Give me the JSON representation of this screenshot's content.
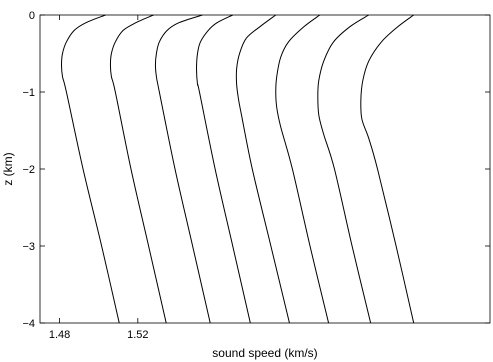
{
  "chart_data": {
    "type": "line",
    "title": "",
    "xlabel": "sound speed (km/s)",
    "ylabel": "z (km)",
    "xlim": [
      1.47,
      1.7
    ],
    "ylim": [
      -4,
      0
    ],
    "x_ticks": [
      1.48,
      1.52
    ],
    "x_tick_labels": [
      "1.48",
      "1.52"
    ],
    "y_ticks": [
      0,
      -1,
      -2,
      -3,
      -4
    ],
    "y_tick_labels": [
      "0",
      "−1",
      "−2",
      "−3",
      "−4"
    ],
    "grid": false,
    "legend": "none",
    "line_color": "#000000",
    "series": [
      {
        "z": [
          0,
          -0.1,
          -0.2,
          -0.35,
          -0.5,
          -0.65,
          -0.8,
          -1,
          -2,
          -3,
          -4
        ],
        "c": [
          1.5035,
          1.4935,
          1.4875,
          1.4835,
          1.4815,
          1.481,
          1.4815,
          1.4835,
          1.492,
          1.5015,
          1.5105
        ]
      },
      {
        "z": [
          0,
          -0.1,
          -0.2,
          -0.35,
          -0.5,
          -0.65,
          -0.8,
          -1,
          -2,
          -3,
          -4
        ],
        "c": [
          1.528,
          1.519,
          1.5125,
          1.5085,
          1.5065,
          1.506,
          1.5065,
          1.5085,
          1.5165,
          1.5255,
          1.5345
        ]
      },
      {
        "z": [
          0,
          -0.1,
          -0.2,
          -0.35,
          -0.5,
          -0.65,
          -0.8,
          -1,
          -2,
          -3,
          -4
        ],
        "c": [
          1.553,
          1.541,
          1.535,
          1.531,
          1.5295,
          1.529,
          1.5295,
          1.531,
          1.539,
          1.548,
          1.557
        ]
      },
      {
        "z": [
          0,
          -0.1,
          -0.2,
          -0.35,
          -0.5,
          -0.7,
          -0.9,
          -1,
          -2,
          -3,
          -4
        ],
        "c": [
          1.5685,
          1.5605,
          1.556,
          1.552,
          1.5505,
          1.55,
          1.5505,
          1.5515,
          1.5595,
          1.5685,
          1.5775
        ]
      },
      {
        "z": [
          0,
          -0.15,
          -0.3,
          -0.5,
          -0.7,
          -0.9,
          -1.1,
          -1.3,
          -2,
          -3,
          -4
        ],
        "c": [
          1.5905,
          1.5825,
          1.5755,
          1.572,
          1.5705,
          1.5705,
          1.5715,
          1.573,
          1.5785,
          1.588,
          1.5975
        ]
      },
      {
        "z": [
          0,
          -0.15,
          -0.35,
          -0.55,
          -0.8,
          -1.0,
          -1.2,
          -1.45,
          -2,
          -3,
          -4
        ],
        "c": [
          1.613,
          1.605,
          1.597,
          1.593,
          1.591,
          1.5905,
          1.591,
          1.593,
          1.599,
          1.608,
          1.6175
        ]
      },
      {
        "z": [
          0,
          -0.15,
          -0.35,
          -0.6,
          -0.85,
          -1.05,
          -1.3,
          -1.55,
          -2,
          -3,
          -4
        ],
        "c": [
          1.638,
          1.6285,
          1.62,
          1.615,
          1.6125,
          1.612,
          1.6125,
          1.615,
          1.6205,
          1.6295,
          1.639
        ]
      },
      {
        "z": [
          0,
          -0.15,
          -0.35,
          -0.6,
          -0.85,
          -1.1,
          -1.35,
          -1.6,
          -2,
          -3,
          -4
        ],
        "c": [
          1.661,
          1.653,
          1.6445,
          1.638,
          1.635,
          1.634,
          1.6345,
          1.638,
          1.6425,
          1.652,
          1.661
        ]
      }
    ]
  }
}
